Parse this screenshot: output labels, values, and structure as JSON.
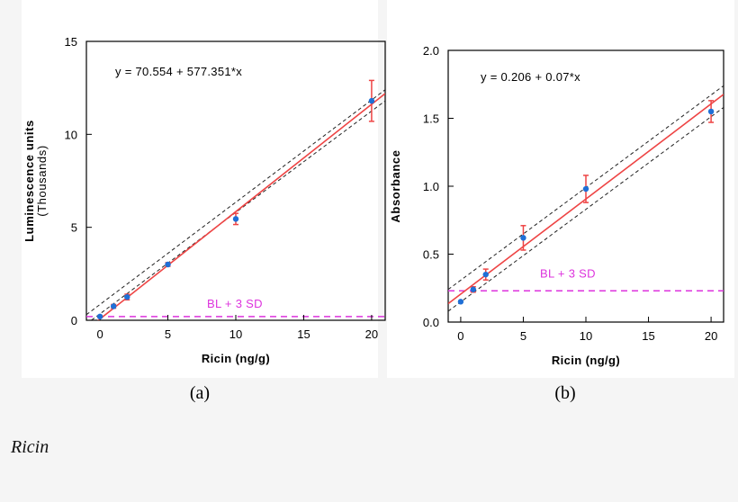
{
  "chart_data": [
    {
      "type": "scatter",
      "panel_label": "(a)",
      "equation": "y = 70.554 + 577.351*x",
      "xlabel": "Ricin  (ng/g)",
      "ylabel": "Luminescence units",
      "ylabel2": "(Thousands)",
      "xlim": [
        -1,
        21
      ],
      "ylim": [
        0,
        15
      ],
      "xticks": [
        0,
        5,
        10,
        15,
        20
      ],
      "yticks": [
        0,
        5,
        10,
        15
      ],
      "points": [
        {
          "x": 0,
          "y": 0.2,
          "err": 0.05
        },
        {
          "x": 1,
          "y": 0.75,
          "err": 0.1
        },
        {
          "x": 2,
          "y": 1.25,
          "err": 0.15
        },
        {
          "x": 5,
          "y": 3.0,
          "err": 0.1
        },
        {
          "x": 10,
          "y": 5.45,
          "err": 0.3
        },
        {
          "x": 20,
          "y": 11.8,
          "err": 1.1
        }
      ],
      "fit": {
        "intercept": 0.070554,
        "slope": 0.577351
      },
      "ci_band": {
        "lower_at_xmin": -0.2,
        "lower_at_xmax": 11.8,
        "upper_at_xmin": 0.3,
        "upper_at_xmax": 12.4
      },
      "threshold": {
        "label": "BL + 3 SD",
        "y": 0.2
      },
      "colors": {
        "fit": "#ee4444",
        "ci": "#222222",
        "points": "#1f6fd6",
        "errorbars": "#ee4444",
        "threshold": "#dd33dd"
      },
      "grid": false
    },
    {
      "type": "scatter",
      "panel_label": "(b)",
      "equation": "y = 0.206 + 0.07*x",
      "xlabel": "Ricin  (ng/g)",
      "ylabel": "Absorbance",
      "ylabel2": "",
      "xlim": [
        -1,
        21
      ],
      "ylim": [
        0,
        2.0
      ],
      "xticks": [
        0,
        5,
        10,
        15,
        20
      ],
      "yticks": [
        0.0,
        0.5,
        1.0,
        1.5,
        2.0
      ],
      "ytick_labels": [
        "0.0",
        "0.5",
        "1.0",
        "1.5",
        "2.0"
      ],
      "points": [
        {
          "x": 0,
          "y": 0.15,
          "err": 0.0
        },
        {
          "x": 1,
          "y": 0.24,
          "err": 0.02
        },
        {
          "x": 2,
          "y": 0.35,
          "err": 0.04
        },
        {
          "x": 5,
          "y": 0.62,
          "err": 0.09
        },
        {
          "x": 10,
          "y": 0.98,
          "err": 0.1
        },
        {
          "x": 20,
          "y": 1.55,
          "err": 0.08
        }
      ],
      "fit": {
        "intercept": 0.206,
        "slope": 0.07
      },
      "ci_band": {
        "lower_at_xmin": 0.08,
        "lower_at_xmax": 1.58,
        "upper_at_xmin": 0.24,
        "upper_at_xmax": 1.74
      },
      "threshold": {
        "label": "BL + 3 SD",
        "y": 0.23
      },
      "colors": {
        "fit": "#ee4444",
        "ci": "#222222",
        "points": "#1f6fd6",
        "errorbars": "#ee4444",
        "threshold": "#dd33dd"
      },
      "grid": false
    }
  ],
  "caption": "Ricin"
}
